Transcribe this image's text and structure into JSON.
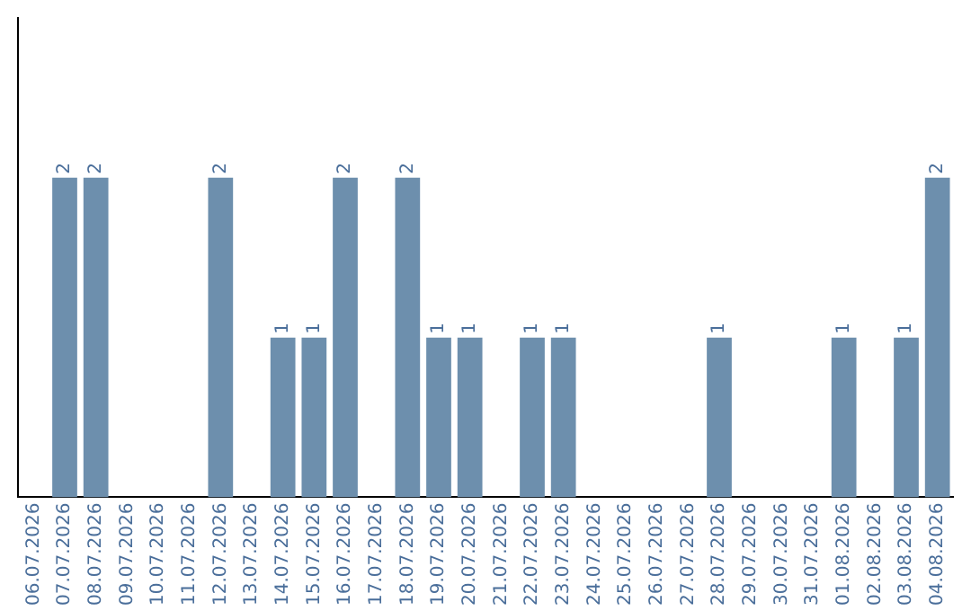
{
  "chart_data": {
    "type": "bar",
    "categories": [
      "06.07.2026",
      "07.07.2026",
      "08.07.2026",
      "09.07.2026",
      "10.07.2026",
      "11.07.2026",
      "12.07.2026",
      "13.07.2026",
      "14.07.2026",
      "15.07.2026",
      "16.07.2026",
      "17.07.2026",
      "18.07.2026",
      "19.07.2026",
      "20.07.2026",
      "21.07.2026",
      "22.07.2026",
      "23.07.2026",
      "24.07.2026",
      "25.07.2026",
      "26.07.2026",
      "27.07.2026",
      "28.07.2026",
      "29.07.2026",
      "30.07.2026",
      "31.07.2026",
      "01.08.2026",
      "02.08.2026",
      "03.08.2026",
      "04.08.2026"
    ],
    "values": [
      0,
      2,
      2,
      0,
      0,
      0,
      2,
      0,
      1,
      1,
      2,
      0,
      2,
      1,
      1,
      0,
      1,
      1,
      0,
      0,
      0,
      0,
      1,
      0,
      0,
      0,
      1,
      0,
      1,
      2
    ],
    "value_labels": [
      null,
      "2",
      "2",
      null,
      null,
      null,
      "2",
      null,
      "1",
      "1",
      "2",
      null,
      "2",
      "1",
      "1",
      null,
      "1",
      "1",
      null,
      null,
      null,
      null,
      "1",
      null,
      null,
      null,
      "1",
      null,
      "1",
      "2"
    ],
    "color": "#6d8fad",
    "grid": false,
    "legend": false
  }
}
